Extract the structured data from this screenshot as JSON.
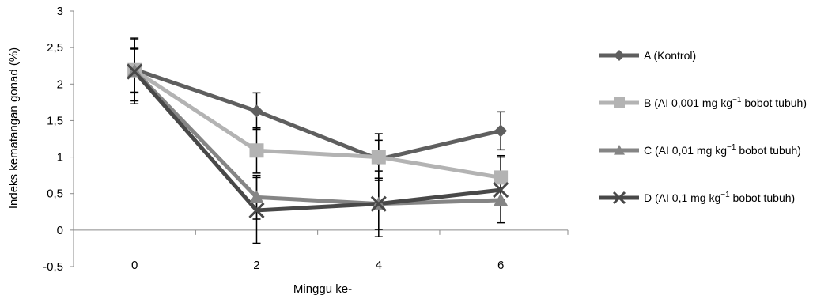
{
  "chart_data": {
    "type": "line",
    "xlabel": "Minggu ke-",
    "ylabel": "Indeks kematangan gonad (%)",
    "x": [
      0,
      2,
      4,
      6
    ],
    "xlim": [
      -1.0,
      7.1
    ],
    "ylim": [
      -0.5,
      3
    ],
    "y_ticks": [
      -0.5,
      0,
      0.5,
      1,
      1.5,
      2,
      2.5,
      3
    ],
    "y_tick_labels": [
      "-0,5",
      "0",
      "0,5",
      "1",
      "1,5",
      "2",
      "2,5",
      "3"
    ],
    "x_tick_labels": [
      "0",
      "2",
      "4",
      "6"
    ],
    "grid": false,
    "legend_position": "right",
    "series": [
      {
        "name": "A (Kontrol)",
        "legend": {
          "prefix": "A (Kontrol)",
          "sup": "",
          "suffix": ""
        },
        "marker": "diamond",
        "color": "#5f5f5f",
        "values": [
          2.2,
          1.63,
          0.97,
          1.36
        ],
        "err": [
          0.43,
          0.25,
          0.26,
          0.26
        ]
      },
      {
        "name": "B (AI 0,001 mg kg−1 bobot tubuh)",
        "legend": {
          "prefix": "B (AI 0,001 mg kg",
          "sup": "−1",
          "suffix": "  bobot tubuh)"
        },
        "marker": "square",
        "color": "#b3b3b3",
        "values": [
          2.19,
          1.09,
          1.0,
          0.72
        ],
        "err": [
          0.3,
          0.31,
          0.32,
          0.3
        ]
      },
      {
        "name": "C (AI 0,01 mg kg−1 bobot tubuh)",
        "legend": {
          "prefix": "C (AI 0,01 mg kg",
          "sup": "−1",
          "suffix": "  bobot tubuh)"
        },
        "marker": "triangle",
        "color": "#858585",
        "values": [
          2.18,
          0.45,
          0.36,
          0.41
        ],
        "err": [
          0.3,
          0.3,
          0.35,
          0.3
        ]
      },
      {
        "name": "D (AI 0,1 mg kg−1 bobot tubuh)",
        "legend": {
          "prefix": "D (AI 0,1 mg kg",
          "sup": "−1",
          "suffix": "   bobot tubuh)"
        },
        "marker": "x",
        "color": "#484848",
        "values": [
          2.17,
          0.27,
          0.36,
          0.55
        ],
        "err": [
          0.44,
          0.45,
          0.45,
          0.45
        ]
      }
    ]
  }
}
